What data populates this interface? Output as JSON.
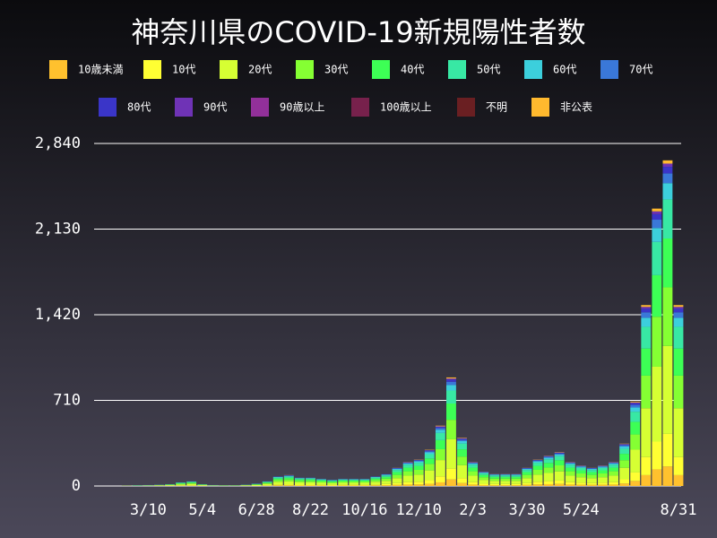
{
  "chart_data": {
    "type": "stacked_bar",
    "title": "神奈川県のCOVID-19新規陽性者数",
    "categories": [
      null,
      null,
      null,
      null,
      null,
      "3/10",
      null,
      null,
      null,
      null,
      "5/4",
      null,
      null,
      null,
      null,
      "6/28",
      null,
      null,
      null,
      null,
      "8/22",
      null,
      null,
      null,
      null,
      "10/16",
      null,
      null,
      null,
      null,
      "12/10",
      null,
      null,
      null,
      null,
      "2/3",
      null,
      null,
      null,
      null,
      "3/30",
      null,
      null,
      null,
      null,
      "5/24",
      null,
      null,
      null,
      null,
      null,
      null,
      null,
      null,
      "8/31"
    ],
    "ylim": [
      0,
      2840
    ],
    "yticks": [
      0,
      {
        "value": 710,
        "label": "710"
      },
      {
        "value": 1420,
        "label": "1,420"
      },
      {
        "value": 2130,
        "label": "2,130"
      },
      {
        "value": 2840,
        "label": "2,840"
      }
    ],
    "grid": true,
    "series": [
      {
        "name": "10歳未満",
        "color": "#ffc12e",
        "values": [
          0,
          0,
          0,
          0,
          0,
          0,
          1,
          1,
          2,
          2,
          1,
          0,
          0,
          0,
          1,
          1,
          2,
          5,
          5,
          4,
          4,
          4,
          3,
          4,
          4,
          4,
          5,
          6,
          9,
          12,
          13,
          18,
          30,
          54,
          24,
          12,
          7,
          6,
          6,
          6,
          9,
          13,
          15,
          17,
          12,
          10,
          9,
          10,
          12,
          21,
          42,
          90,
          138,
          162,
          90
        ]
      },
      {
        "name": "10代",
        "color": "#ffff33",
        "values": [
          0,
          0,
          0,
          0,
          0,
          1,
          1,
          2,
          3,
          4,
          2,
          1,
          0,
          0,
          1,
          2,
          4,
          8,
          9,
          7,
          7,
          6,
          5,
          6,
          6,
          6,
          8,
          10,
          15,
          20,
          22,
          30,
          50,
          90,
          40,
          20,
          12,
          10,
          10,
          10,
          15,
          22,
          25,
          28,
          20,
          17,
          15,
          17,
          20,
          35,
          70,
          150,
          230,
          270,
          150
        ]
      },
      {
        "name": "20代",
        "color": "#d6ff33",
        "values": [
          0,
          0,
          0,
          1,
          1,
          2,
          3,
          4,
          8,
          11,
          4,
          2,
          2,
          2,
          3,
          5,
          11,
          22,
          24,
          19,
          19,
          16,
          14,
          16,
          16,
          16,
          22,
          27,
          41,
          54,
          59,
          81,
          135,
          243,
          108,
          54,
          32,
          27,
          27,
          27,
          41,
          59,
          68,
          76,
          54,
          46,
          41,
          46,
          54,
          95,
          189,
          405,
          621,
          729,
          405
        ]
      },
      {
        "name": "30代",
        "color": "#85ff33",
        "values": [
          0,
          0,
          0,
          1,
          1,
          1,
          2,
          3,
          5,
          7,
          3,
          1,
          1,
          1,
          2,
          4,
          7,
          14,
          16,
          13,
          13,
          11,
          9,
          11,
          11,
          11,
          14,
          18,
          27,
          36,
          40,
          54,
          90,
          162,
          72,
          36,
          22,
          18,
          18,
          18,
          27,
          40,
          45,
          50,
          36,
          31,
          27,
          31,
          36,
          63,
          126,
          270,
          414,
          486,
          270
        ]
      },
      {
        "name": "40代",
        "color": "#3dff55",
        "values": [
          0,
          0,
          0,
          0,
          1,
          1,
          1,
          2,
          5,
          6,
          2,
          1,
          1,
          1,
          1,
          3,
          6,
          12,
          14,
          11,
          11,
          9,
          8,
          9,
          9,
          9,
          12,
          15,
          23,
          30,
          33,
          45,
          75,
          135,
          60,
          30,
          18,
          15,
          15,
          15,
          23,
          33,
          38,
          42,
          30,
          26,
          23,
          26,
          30,
          53,
          105,
          225,
          345,
          405,
          225
        ]
      },
      {
        "name": "50代",
        "color": "#38e8a4",
        "values": [
          0,
          0,
          0,
          0,
          1,
          1,
          1,
          2,
          4,
          5,
          2,
          1,
          1,
          1,
          1,
          2,
          5,
          10,
          11,
          8,
          8,
          7,
          6,
          7,
          7,
          7,
          10,
          12,
          18,
          24,
          26,
          36,
          60,
          108,
          48,
          24,
          14,
          12,
          12,
          12,
          18,
          26,
          30,
          34,
          24,
          20,
          18,
          20,
          24,
          42,
          84,
          180,
          276,
          324,
          180
        ]
      },
      {
        "name": "60代",
        "color": "#3ccfdc",
        "values": [
          0,
          0,
          0,
          0,
          1,
          1,
          1,
          1,
          2,
          2,
          1,
          1,
          0,
          0,
          1,
          1,
          2,
          4,
          5,
          4,
          4,
          3,
          3,
          3,
          3,
          3,
          4,
          5,
          8,
          10,
          11,
          15,
          25,
          45,
          20,
          10,
          6,
          5,
          5,
          5,
          8,
          11,
          13,
          14,
          10,
          9,
          8,
          9,
          10,
          18,
          35,
          75,
          115,
          135,
          75
        ]
      },
      {
        "name": "70代",
        "color": "#3a78d8",
        "values": [
          0,
          0,
          0,
          0,
          0,
          1,
          0,
          0,
          1,
          1,
          0,
          1,
          0,
          0,
          0,
          1,
          1,
          2,
          3,
          2,
          2,
          2,
          2,
          2,
          2,
          2,
          2,
          3,
          5,
          6,
          7,
          9,
          15,
          27,
          12,
          6,
          4,
          3,
          3,
          3,
          5,
          7,
          8,
          8,
          6,
          5,
          5,
          5,
          6,
          11,
          21,
          45,
          69,
          81,
          45
        ]
      },
      {
        "name": "80代",
        "color": "#3a35c8",
        "values": [
          0,
          0,
          0,
          0,
          0,
          0,
          0,
          0,
          0,
          1,
          0,
          0,
          0,
          0,
          0,
          1,
          1,
          2,
          2,
          1,
          1,
          1,
          1,
          1,
          1,
          1,
          2,
          2,
          3,
          4,
          4,
          6,
          10,
          18,
          8,
          4,
          2,
          2,
          2,
          2,
          3,
          4,
          5,
          6,
          4,
          3,
          3,
          3,
          4,
          7,
          14,
          30,
          46,
          54,
          30
        ]
      },
      {
        "name": "90代",
        "color": "#6f33b6",
        "values": [
          0,
          0,
          0,
          0,
          0,
          0,
          0,
          0,
          0,
          0,
          0,
          0,
          0,
          0,
          0,
          0,
          0,
          0,
          1,
          0,
          0,
          0,
          0,
          0,
          0,
          0,
          0,
          0,
          1,
          2,
          2,
          3,
          5,
          9,
          4,
          2,
          1,
          1,
          1,
          1,
          1,
          2,
          2,
          3,
          2,
          2,
          1,
          2,
          2,
          3,
          7,
          15,
          23,
          27,
          15
        ]
      },
      {
        "name": "90歳以上",
        "color": "#92309a",
        "values": [
          0,
          0,
          0,
          0,
          0,
          0,
          0,
          0,
          0,
          0,
          0,
          0,
          0,
          0,
          0,
          0,
          0,
          0,
          0,
          0,
          0,
          0,
          0,
          0,
          0,
          0,
          0,
          0,
          0,
          0,
          0,
          0,
          0,
          0,
          0,
          0,
          0,
          0,
          0,
          0,
          0,
          0,
          0,
          0,
          0,
          0,
          0,
          0,
          0,
          0,
          0,
          0,
          0,
          0,
          0
        ]
      },
      {
        "name": "100歳以上",
        "color": "#77214c",
        "values": [
          0,
          0,
          0,
          0,
          0,
          0,
          0,
          0,
          0,
          0,
          0,
          0,
          0,
          0,
          0,
          0,
          0,
          0,
          0,
          0,
          0,
          0,
          0,
          0,
          0,
          0,
          0,
          0,
          0,
          0,
          0,
          0,
          0,
          0,
          0,
          0,
          0,
          0,
          0,
          0,
          0,
          0,
          0,
          0,
          0,
          0,
          0,
          0,
          0,
          0,
          0,
          0,
          0,
          0,
          0
        ]
      },
      {
        "name": "不明",
        "color": "#6a1f22",
        "values": [
          0,
          0,
          0,
          0,
          0,
          0,
          0,
          0,
          0,
          0,
          0,
          0,
          0,
          0,
          0,
          0,
          0,
          0,
          0,
          0,
          0,
          0,
          0,
          0,
          0,
          0,
          0,
          0,
          0,
          0,
          0,
          0,
          0,
          0,
          0,
          0,
          0,
          0,
          0,
          0,
          0,
          0,
          0,
          0,
          0,
          0,
          0,
          0,
          0,
          0,
          0,
          0,
          0,
          0,
          0
        ]
      },
      {
        "name": "非公表",
        "color": "#ffb92e",
        "values": [
          0,
          0,
          0,
          0,
          0,
          0,
          0,
          0,
          0,
          0,
          0,
          0,
          0,
          0,
          0,
          0,
          0,
          0,
          1,
          0,
          0,
          0,
          0,
          0,
          0,
          0,
          0,
          0,
          1,
          2,
          2,
          3,
          5,
          9,
          4,
          2,
          1,
          1,
          1,
          1,
          1,
          2,
          2,
          3,
          2,
          2,
          1,
          2,
          2,
          3,
          7,
          15,
          23,
          27,
          15
        ]
      }
    ]
  }
}
